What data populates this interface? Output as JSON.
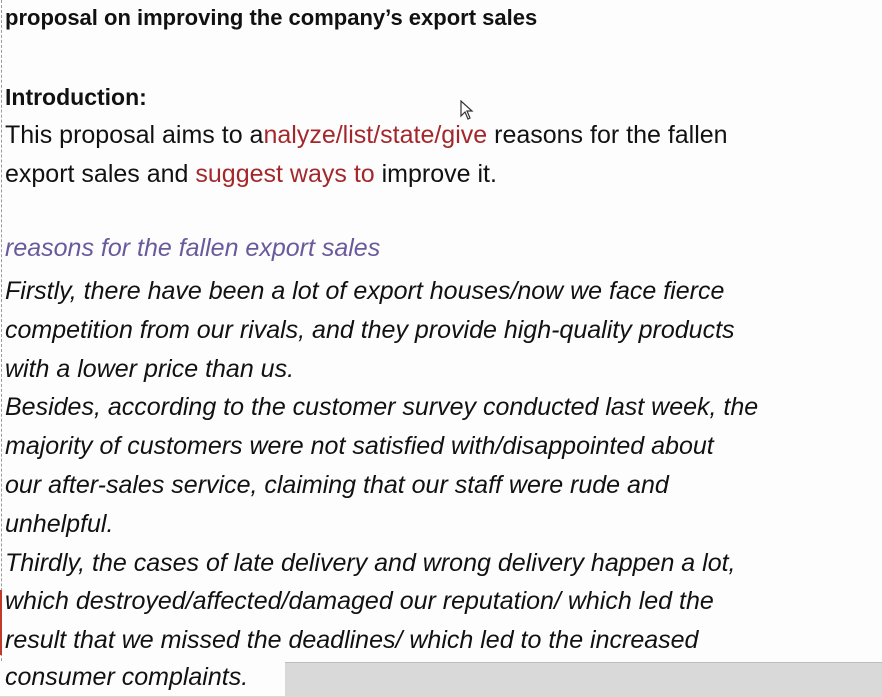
{
  "document": {
    "title": "proposal on improving the company’s export sales",
    "intro_heading": "Introduction:",
    "intro": {
      "l1_a": "This proposal aims to a",
      "l1_b": "nalyze/list/state/give",
      "l1_c": "  reasons for the fallen",
      "l2_a": "export sales and ",
      "l2_b": "suggest ways to",
      "l2_c": " improve it."
    },
    "section_title": "reasons for the fallen export sales",
    "body_lines": [
      "Firstly, there have been a lot of export houses/now we face fierce",
      "competition  from our rivals, and they provide high-quality  products",
      "with a lower price than us.",
      "Besides, according to the customer survey conducted last week, the",
      "majority of customers were not satisfied with/disappointed  about",
      "our after-sales service, claiming that our staff were rude and",
      "unhelpful.",
      "Thirdly, the cases of late delivery and wrong delivery happen a lot,",
      "which destroyed/affected/damaged our reputation/ which led the",
      "result that we missed the deadlines/ which led to the increased"
    ],
    "last_line": "consumer complaints."
  },
  "colors": {
    "red_text": "#a3282c",
    "section_title": "#6a5a9c"
  },
  "icons": {
    "cursor": "mouse-pointer-icon"
  }
}
